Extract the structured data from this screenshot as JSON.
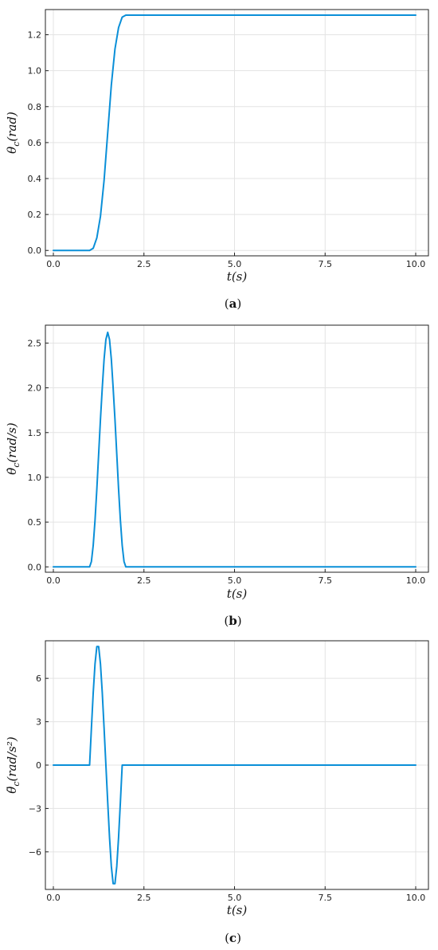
{
  "chart_data": [
    {
      "type": "line",
      "caption": {
        "open": "(",
        "letter": "a",
        "close": ")"
      },
      "xlabel": {
        "var": "t",
        "rest": "(s)"
      },
      "ylabel": {
        "var": "θ",
        "sub": "c",
        "rest": "(rad)"
      },
      "xlim": [
        0,
        10
      ],
      "ylim": [
        -0.03,
        1.34
      ],
      "x_ticks": [
        0,
        2.5,
        5,
        7.5,
        10
      ],
      "x_tick_labels": [
        "0.0",
        "2.5",
        "5.0",
        "7.5",
        "10.0"
      ],
      "y_ticks": [
        0,
        0.2,
        0.4,
        0.6,
        0.8,
        1.0,
        1.2
      ],
      "y_tick_labels": [
        "0.0",
        "0.2",
        "0.4",
        "0.6",
        "0.8",
        "1.0",
        "1.2"
      ],
      "grid": true,
      "color": "#0a8fd8",
      "series": [
        {
          "x": [
            0,
            1.0,
            1.1,
            1.2,
            1.3,
            1.4,
            1.5,
            1.6,
            1.7,
            1.8,
            1.9,
            2.0,
            10
          ],
          "y": [
            0,
            0,
            0.012,
            0.07,
            0.19,
            0.39,
            0.654,
            0.92,
            1.12,
            1.24,
            1.298,
            1.309,
            1.309
          ]
        }
      ]
    },
    {
      "type": "line",
      "caption": {
        "open": "(",
        "letter": "b",
        "close": ")"
      },
      "xlabel": {
        "var": "t",
        "rest": "(s)"
      },
      "ylabel": {
        "var": "θ̇",
        "sub": "c",
        "rest": "(rad/s)"
      },
      "xlim": [
        0,
        10
      ],
      "ylim": [
        -0.06,
        2.7
      ],
      "x_ticks": [
        0,
        2.5,
        5,
        7.5,
        10
      ],
      "x_tick_labels": [
        "0.0",
        "2.5",
        "5.0",
        "7.5",
        "10.0"
      ],
      "y_ticks": [
        0,
        0.5,
        1.0,
        1.5,
        2.0,
        2.5
      ],
      "y_tick_labels": [
        "0.0",
        "0.5",
        "1.0",
        "1.5",
        "2.0",
        "2.5"
      ],
      "grid": true,
      "color": "#0a8fd8",
      "series": [
        {
          "x": [
            0,
            1.0,
            1.05,
            1.1,
            1.15,
            1.2,
            1.25,
            1.3,
            1.35,
            1.4,
            1.45,
            1.5,
            1.55,
            1.6,
            1.65,
            1.7,
            1.75,
            1.8,
            1.85,
            1.9,
            1.95,
            2.0,
            10
          ],
          "y": [
            0,
            0,
            0.06,
            0.24,
            0.52,
            0.87,
            1.26,
            1.65,
            2.0,
            2.32,
            2.54,
            2.62,
            2.54,
            2.32,
            2.0,
            1.65,
            1.26,
            0.87,
            0.52,
            0.24,
            0.06,
            0,
            0
          ]
        }
      ]
    },
    {
      "type": "line",
      "caption": {
        "open": "(",
        "letter": "c",
        "close": ")"
      },
      "xlabel": {
        "var": "t",
        "rest": "(s)"
      },
      "ylabel": {
        "var": "θ̈",
        "sub": "c",
        "rest": "(rad/s²)"
      },
      "xlim": [
        0,
        10
      ],
      "ylim": [
        -8.6,
        8.6
      ],
      "x_ticks": [
        0,
        2.5,
        5,
        7.5,
        10
      ],
      "x_tick_labels": [
        "0.0",
        "2.5",
        "5.0",
        "7.5",
        "10.0"
      ],
      "y_ticks": [
        -6,
        -3,
        0,
        3,
        6
      ],
      "y_tick_labels": [
        "−6",
        "−3",
        "0",
        "3",
        "6"
      ],
      "grid": true,
      "color": "#0a8fd8",
      "series": [
        {
          "x": [
            0,
            1.0,
            1.05,
            1.1,
            1.15,
            1.2,
            1.25,
            1.3,
            1.35,
            1.4,
            1.45,
            1.5,
            1.55,
            1.6,
            1.65,
            1.7,
            1.75,
            1.8,
            1.85,
            1.9,
            1.95,
            2.0,
            10
          ],
          "y": [
            0,
            0,
            2.55,
            5.0,
            7.0,
            8.2,
            8.2,
            7.0,
            5.0,
            2.55,
            0.0,
            -2.55,
            -5.0,
            -7.0,
            -8.2,
            -8.2,
            -7.0,
            -5.0,
            -2.55,
            0,
            0,
            0,
            0
          ]
        }
      ]
    }
  ]
}
